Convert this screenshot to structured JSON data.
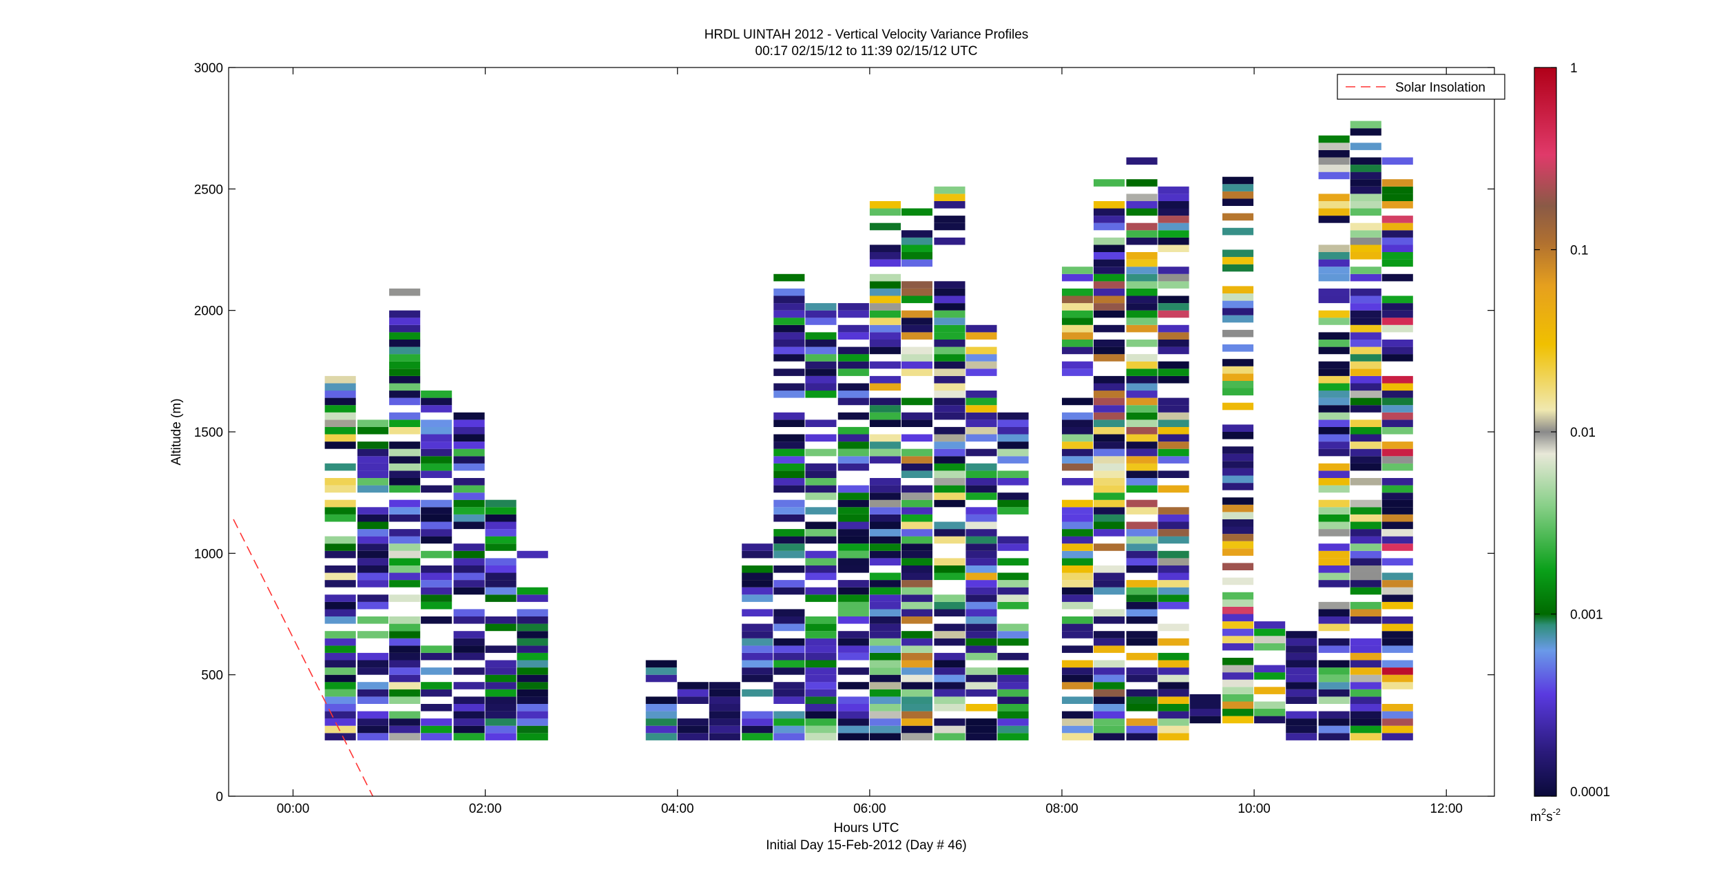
{
  "chart_data": {
    "type": "heatmap",
    "title": "HRDL UINTAH 2012 - Vertical Velocity Variance Profiles",
    "subtitle": "00:17 02/15/12 to 11:39 02/15/12  UTC",
    "xlabel": "Hours UTC",
    "xlabel2": "Initial Day 15-Feb-2012 (Day # 46)",
    "ylabel": "Altitude (m)",
    "xlim": [
      -0.67,
      12.5
    ],
    "ylim": [
      0,
      3000
    ],
    "x_ticks": [
      0,
      2,
      4,
      6,
      8,
      10,
      12
    ],
    "x_tick_labels": [
      "00:00",
      "02:00",
      "04:00",
      "06:00",
      "08:00",
      "10:00",
      "12:00"
    ],
    "y_ticks": [
      0,
      500,
      1000,
      1500,
      2000,
      2500,
      3000
    ],
    "y_tick_labels": [
      "0",
      "500",
      "1000",
      "1500",
      "2000",
      "2500",
      "3000"
    ],
    "colorbar": {
      "scale": "log",
      "range": [
        0.0001,
        1
      ],
      "ticks": [
        0.0001,
        0.001,
        0.01,
        0.1,
        1
      ],
      "tick_labels": [
        "0.0001",
        "0.001",
        "0.01",
        "0.1",
        "1"
      ],
      "unit_base": "m",
      "unit_exp1": "2",
      "unit_mid": "s",
      "unit_exp2": "-2"
    },
    "legend": {
      "entry": "Solar Insolation",
      "placement": "top-right",
      "color": "#ff3333"
    },
    "solar_insolation": {
      "x": [
        -0.62,
        0.83
      ],
      "y": [
        1140,
        0
      ]
    },
    "profile_bin_height_m": 30,
    "profile_width_h": 0.33,
    "profiles": [
      {
        "t": 0.33,
        "bot": 230,
        "top": 1730,
        "vmin": 0.0001,
        "vmax": 0.03,
        "seed": 3
      },
      {
        "t": 0.67,
        "bot": 230,
        "top": 1550,
        "vmin": 0.0001,
        "vmax": 0.004,
        "seed": 7
      },
      {
        "t": 1.0,
        "bot": 230,
        "top": 2090,
        "vmin": 0.0001,
        "vmax": 0.02,
        "seed": 11
      },
      {
        "t": 1.33,
        "bot": 230,
        "top": 1690,
        "vmin": 0.0001,
        "vmax": 0.003,
        "seed": 13
      },
      {
        "t": 1.67,
        "bot": 230,
        "top": 1580,
        "vmin": 0.0001,
        "vmax": 0.003,
        "seed": 17
      },
      {
        "t": 2.0,
        "bot": 230,
        "top": 1210,
        "vmin": 0.0001,
        "vmax": 0.002,
        "seed": 19
      },
      {
        "t": 2.33,
        "bot": 230,
        "top": 1010,
        "vmin": 0.0001,
        "vmax": 0.002,
        "seed": 23
      },
      {
        "t": 3.67,
        "bot": 230,
        "top": 560,
        "vmin": 0.0001,
        "vmax": 0.001,
        "seed": 29
      },
      {
        "t": 4.0,
        "bot": 230,
        "top": 470,
        "vmin": 0.0001,
        "vmax": 0.0003,
        "seed": 31
      },
      {
        "t": 4.33,
        "bot": 230,
        "top": 470,
        "vmin": 0.0001,
        "vmax": 0.0002,
        "seed": 37
      },
      {
        "t": 4.67,
        "bot": 230,
        "top": 1030,
        "vmin": 0.0001,
        "vmax": 0.002,
        "seed": 41
      },
      {
        "t": 5.0,
        "bot": 230,
        "top": 2150,
        "vmin": 0.0001,
        "vmax": 0.002,
        "seed": 43
      },
      {
        "t": 5.33,
        "bot": 230,
        "top": 2030,
        "vmin": 0.0001,
        "vmax": 0.006,
        "seed": 47
      },
      {
        "t": 5.67,
        "bot": 230,
        "top": 2030,
        "vmin": 0.0001,
        "vmax": 0.003,
        "seed": 53
      },
      {
        "t": 6.0,
        "bot": 230,
        "top": 2480,
        "vmin": 0.0001,
        "vmax": 0.06,
        "seed": 59
      },
      {
        "t": 6.33,
        "bot": 230,
        "top": 2480,
        "vmin": 0.0001,
        "vmax": 0.3,
        "seed": 61
      },
      {
        "t": 6.67,
        "bot": 230,
        "top": 2510,
        "vmin": 0.0001,
        "vmax": 0.03,
        "seed": 67
      },
      {
        "t": 7.0,
        "bot": 230,
        "top": 1940,
        "vmin": 0.0001,
        "vmax": 0.06,
        "seed": 71
      },
      {
        "t": 7.33,
        "bot": 230,
        "top": 1610,
        "vmin": 0.0001,
        "vmax": 0.01,
        "seed": 73
      },
      {
        "t": 8.0,
        "bot": 230,
        "top": 2200,
        "vmin": 0.0001,
        "vmax": 0.3,
        "seed": 79
      },
      {
        "t": 8.33,
        "bot": 230,
        "top": 2540,
        "vmin": 0.0001,
        "vmax": 0.3,
        "seed": 83
      },
      {
        "t": 8.67,
        "bot": 230,
        "top": 2610,
        "vmin": 0.0001,
        "vmax": 0.3,
        "seed": 89
      },
      {
        "t": 9.0,
        "bot": 230,
        "top": 2510,
        "vmin": 0.0001,
        "vmax": 0.5,
        "seed": 97
      },
      {
        "t": 9.33,
        "bot": 300,
        "top": 400,
        "vmin": 0.0001,
        "vmax": 0.0002,
        "seed": 101
      },
      {
        "t": 9.67,
        "bot": 300,
        "top": 2530,
        "vmin": 0.0001,
        "vmax": 0.3,
        "seed": 103
      },
      {
        "t": 10.0,
        "bot": 300,
        "top": 700,
        "vmin": 0.0001,
        "vmax": 0.05,
        "seed": 107
      },
      {
        "t": 10.33,
        "bot": 230,
        "top": 700,
        "vmin": 0.0001,
        "vmax": 0.0003,
        "seed": 109
      },
      {
        "t": 10.67,
        "bot": 230,
        "top": 2720,
        "vmin": 0.0001,
        "vmax": 0.06,
        "seed": 113
      },
      {
        "t": 11.0,
        "bot": 230,
        "top": 2780,
        "vmin": 0.0001,
        "vmax": 0.08,
        "seed": 127
      },
      {
        "t": 11.33,
        "bot": 230,
        "top": 2610,
        "vmin": 0.0001,
        "vmax": 0.8,
        "seed": 131
      }
    ]
  }
}
